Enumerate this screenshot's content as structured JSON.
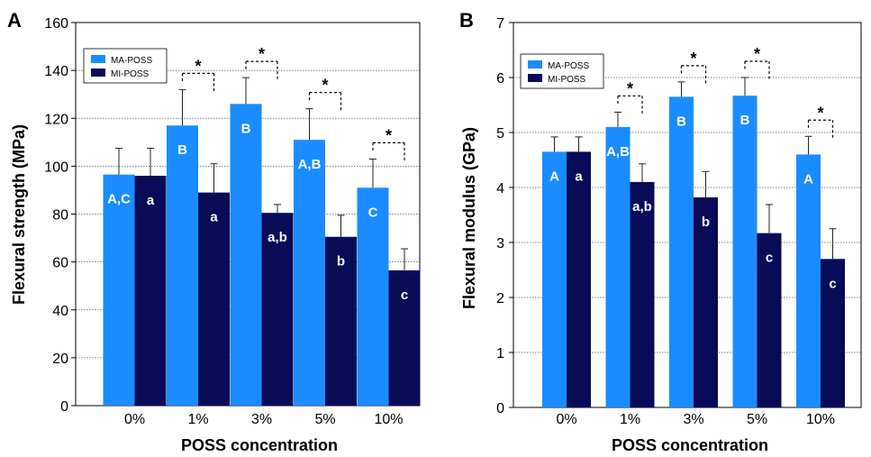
{
  "colors": {
    "ma_poss": "#1a8cff",
    "mi_poss": "#080b57",
    "axis": "#000000",
    "grid": "#555555",
    "bar_label": "#ffffff"
  },
  "chart_data": [
    {
      "panel_label": "A",
      "type": "bar",
      "xlabel": "POSS concentration",
      "ylabel": "Flexural strength (MPa)",
      "ylim": [
        0,
        160
      ],
      "yticks": [
        "0",
        "20",
        "40",
        "60",
        "80",
        "100",
        "120",
        "140",
        "160"
      ],
      "categories": [
        "0%",
        "1%",
        "3%",
        "5%",
        "10%"
      ],
      "grid": true,
      "legend_position": "top-left",
      "significance_marker": "*",
      "series": [
        {
          "name": "MA-POSS",
          "values": [
            96.5,
            117,
            126,
            111,
            91
          ],
          "errors": [
            11,
            15,
            11,
            13,
            12
          ],
          "labels": [
            "A,C",
            "B",
            "B",
            "A,B",
            "C"
          ]
        },
        {
          "name": "MI-POSS",
          "values": [
            96,
            89,
            80.5,
            70.5,
            56.5
          ],
          "errors": [
            11.5,
            12,
            3.5,
            9,
            9
          ],
          "labels": [
            "a",
            "a",
            "a,b",
            "b",
            "c"
          ]
        }
      ],
      "significance": [
        false,
        true,
        true,
        true,
        true
      ]
    },
    {
      "panel_label": "B",
      "type": "bar",
      "xlabel": "POSS concentration",
      "ylabel": "Flexural modulus (GPa)",
      "ylim": [
        0,
        7
      ],
      "yticks": [
        "0",
        "1",
        "2",
        "3",
        "4",
        "5",
        "6",
        "7"
      ],
      "categories": [
        "0%",
        "1%",
        "3%",
        "5%",
        "10%"
      ],
      "grid": true,
      "legend_position": "top-left",
      "significance_marker": "*",
      "series": [
        {
          "name": "MA-POSS",
          "values": [
            4.65,
            5.1,
            5.65,
            5.67,
            4.6
          ],
          "errors": [
            0.27,
            0.27,
            0.27,
            0.33,
            0.33
          ],
          "labels": [
            "A",
            "A,B",
            "B",
            "B",
            "A"
          ]
        },
        {
          "name": "MI-POSS",
          "values": [
            4.65,
            4.1,
            3.82,
            3.17,
            2.7
          ],
          "errors": [
            0.27,
            0.33,
            0.47,
            0.52,
            0.55
          ],
          "labels": [
            "a",
            "a,b",
            "b",
            "c",
            "c"
          ]
        }
      ],
      "significance": [
        false,
        true,
        true,
        true,
        true
      ]
    }
  ]
}
